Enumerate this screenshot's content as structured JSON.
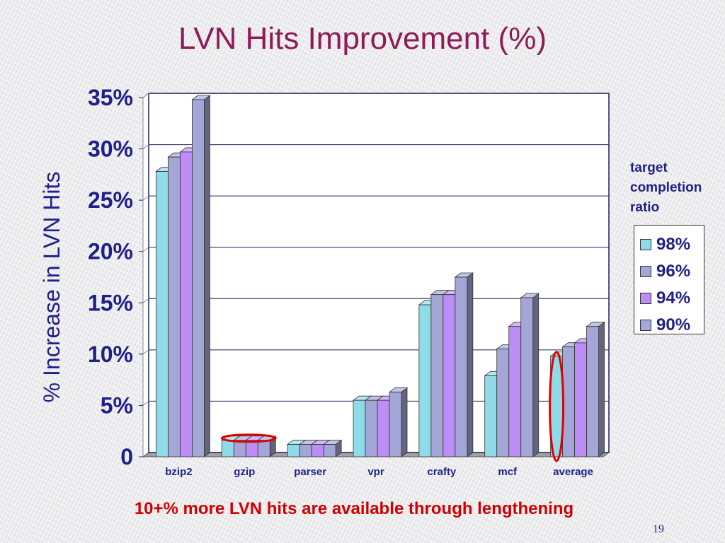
{
  "slide": {
    "title": "LVN Hits Improvement (%)",
    "footnote": "10+% more LVN hits are available through lengthening",
    "page_number": "19"
  },
  "chart_data": {
    "type": "bar",
    "title": "",
    "ylabel": "% Increase in LVN Hits",
    "xlabel": "",
    "ylim": [
      0,
      35
    ],
    "yticks": [
      0,
      5,
      10,
      15,
      20,
      25,
      30,
      35
    ],
    "ytick_labels": [
      "0",
      "5%",
      "10%",
      "15%",
      "20%",
      "25%",
      "30%",
      "35%"
    ],
    "grid": true,
    "legend_title": "target\ncompletion\nratio",
    "legend_position": "right",
    "categories": [
      "bzip2",
      "gzip",
      "parser",
      "vpr",
      "crafty",
      "mcf",
      "average"
    ],
    "series": [
      {
        "name": "98%",
        "color": "#8fdbe8",
        "values": [
          27.8,
          1.6,
          1.2,
          5.5,
          14.8,
          7.9,
          9.8
        ]
      },
      {
        "name": "96%",
        "color": "#a3a6d6",
        "values": [
          29.2,
          1.6,
          1.2,
          5.5,
          15.8,
          10.5,
          10.7
        ]
      },
      {
        "name": "94%",
        "color": "#bb8df5",
        "values": [
          29.7,
          1.6,
          1.2,
          5.5,
          15.8,
          12.7,
          11.1
        ]
      },
      {
        "name": "90%",
        "color": "#a3a6d6",
        "values": [
          34.8,
          1.6,
          1.2,
          6.3,
          17.5,
          15.5,
          12.7
        ]
      }
    ],
    "annotations": [
      {
        "type": "ellipse",
        "category": "gzip",
        "color": "#e00000"
      },
      {
        "type": "ellipse",
        "category": "average",
        "series": "98%",
        "color": "#e00000"
      }
    ]
  }
}
